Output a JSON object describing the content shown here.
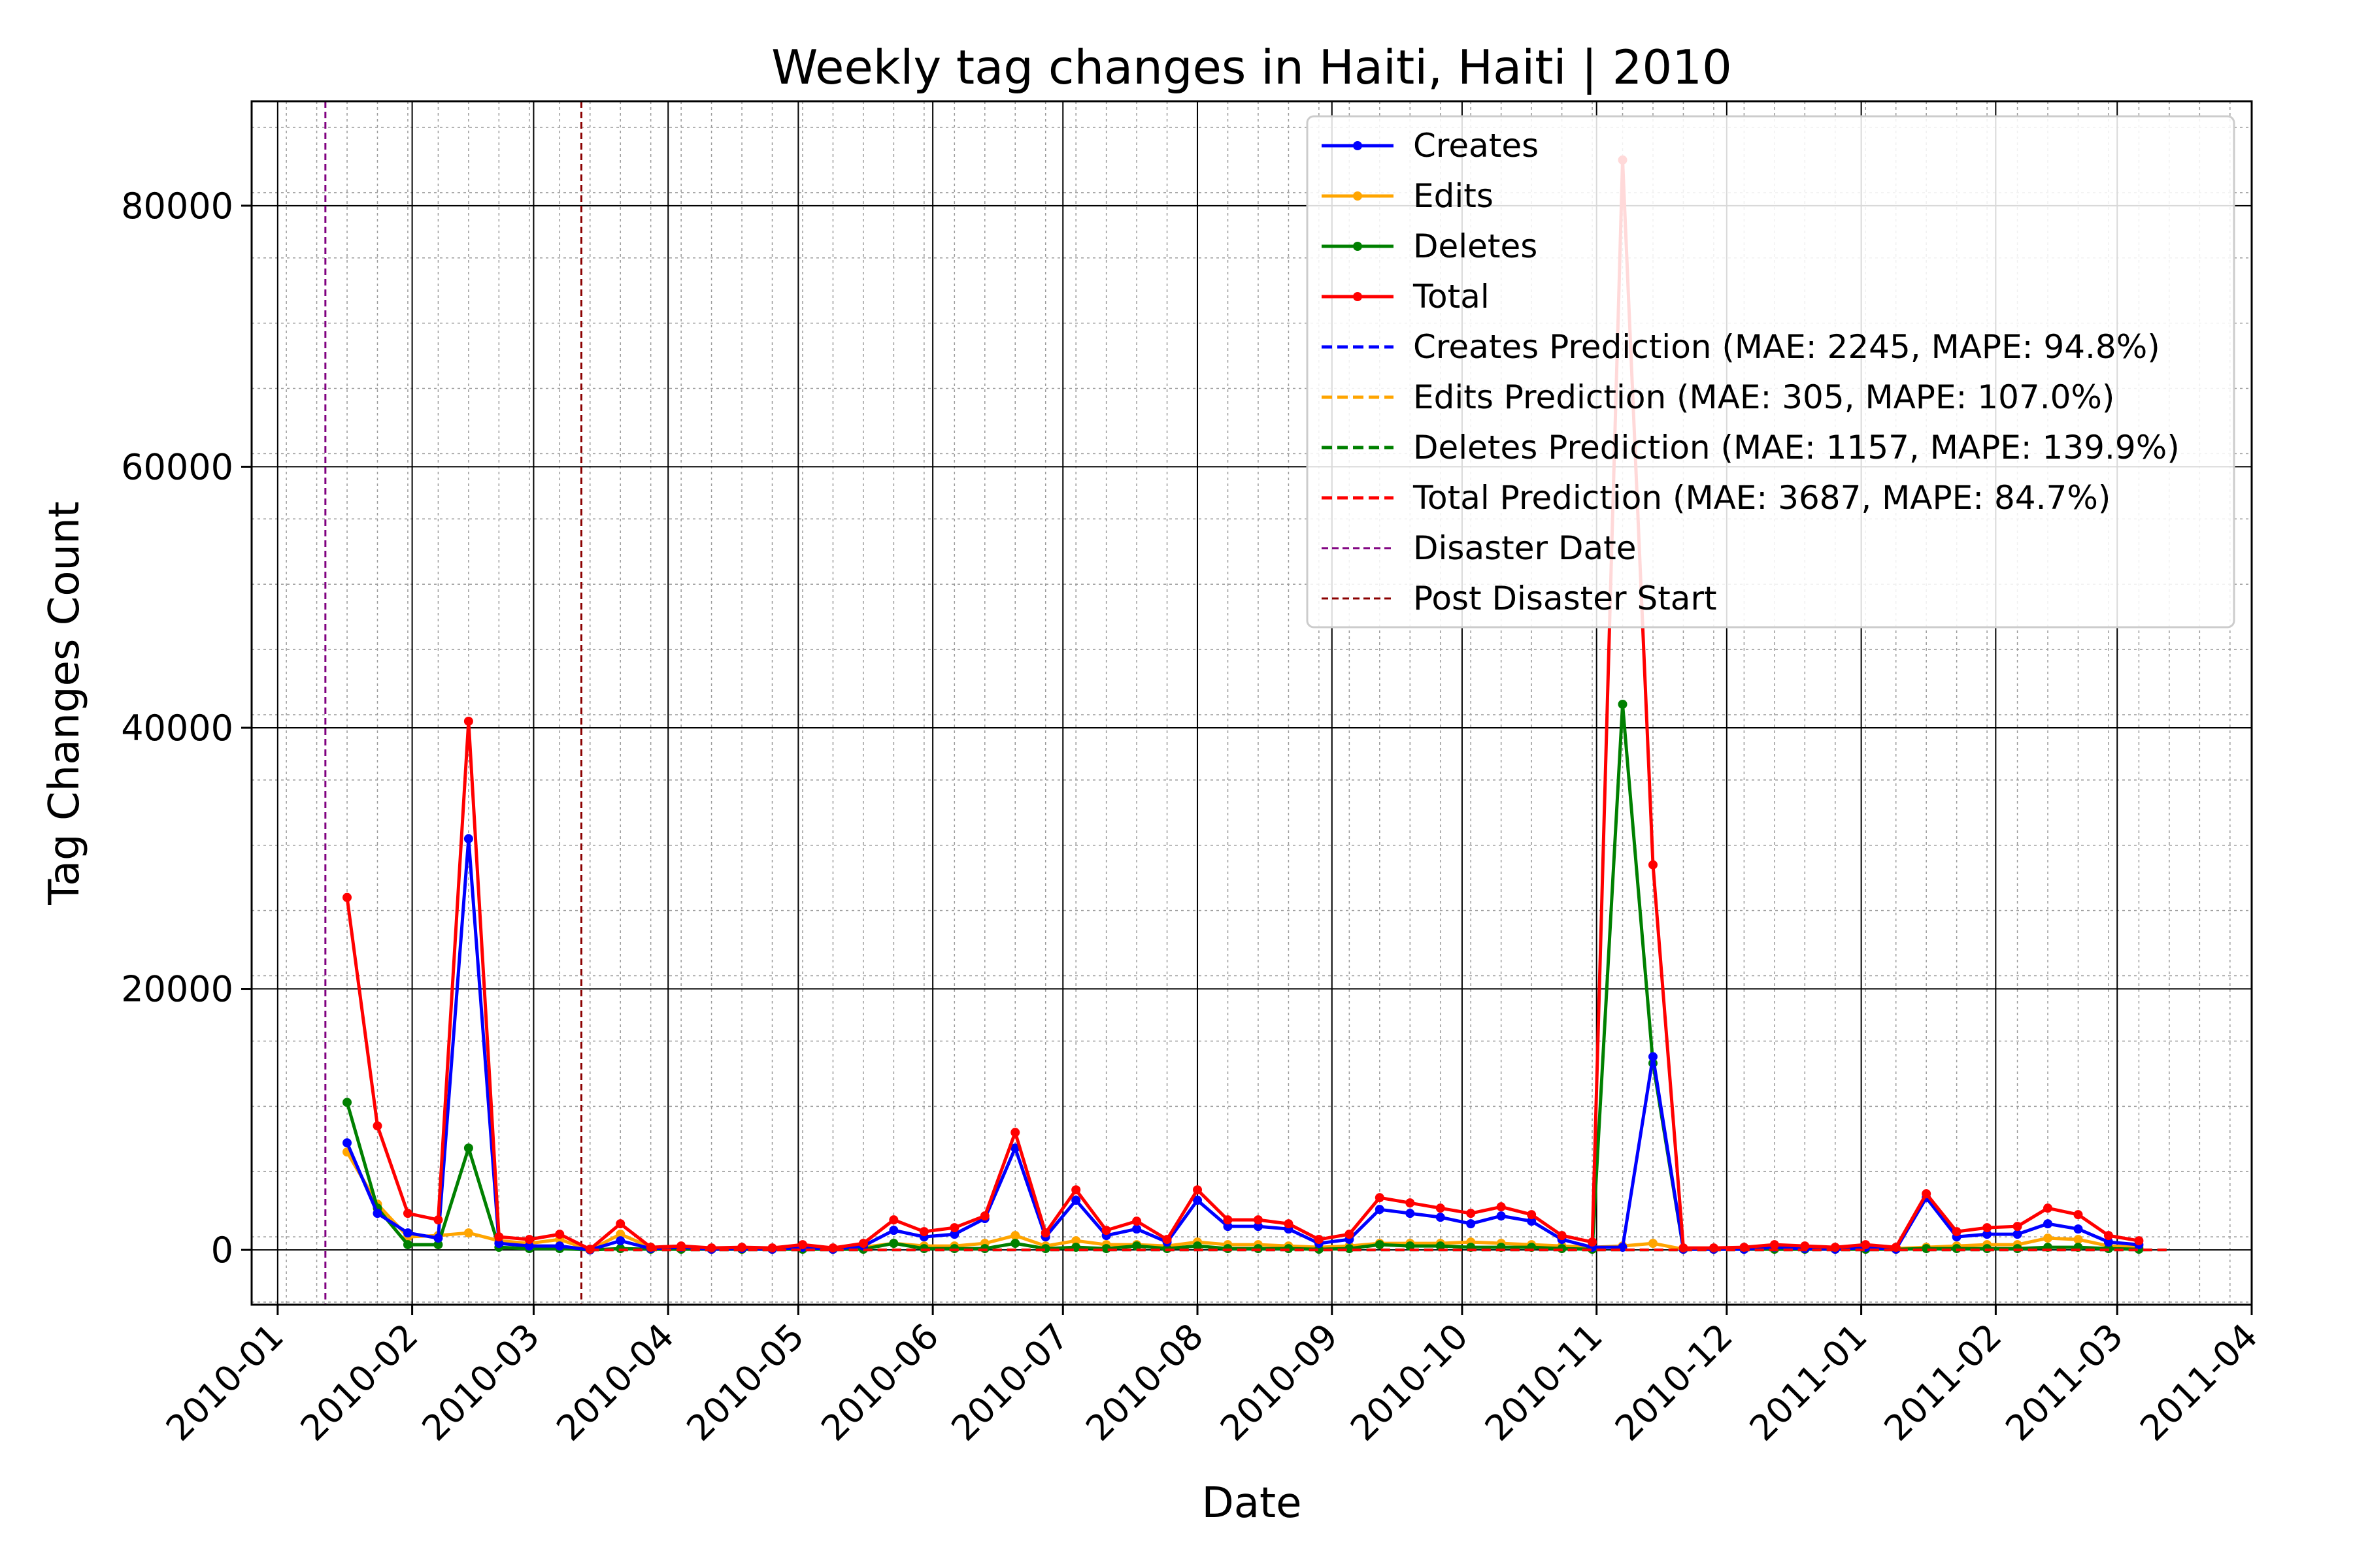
{
  "chart_data": {
    "type": "line",
    "title": "Weekly tag changes in Haiti, Haiti | 2010",
    "xlabel": "Date",
    "ylabel": "Tag Changes Count",
    "xlim": [
      "2009-12-26",
      "2011-04-01"
    ],
    "ylim": [
      -4200,
      88000
    ],
    "grid": "major and minor",
    "legend_position": "top-right",
    "x_ticks": [
      "2010-01",
      "2010-02",
      "2010-03",
      "2010-04",
      "2010-05",
      "2010-06",
      "2010-07",
      "2010-08",
      "2010-09",
      "2010-10",
      "2010-11",
      "2010-12",
      "2011-01",
      "2011-02",
      "2011-03",
      "2011-04"
    ],
    "y_ticks": [
      0,
      20000,
      40000,
      60000,
      80000
    ],
    "x": [
      "2010-01-17",
      "2010-01-24",
      "2010-01-31",
      "2010-02-07",
      "2010-02-14",
      "2010-02-21",
      "2010-02-28",
      "2010-03-07",
      "2010-03-14",
      "2010-03-21",
      "2010-03-28",
      "2010-04-04",
      "2010-04-11",
      "2010-04-18",
      "2010-04-25",
      "2010-05-02",
      "2010-05-09",
      "2010-05-16",
      "2010-05-23",
      "2010-05-30",
      "2010-06-06",
      "2010-06-13",
      "2010-06-20",
      "2010-06-27",
      "2010-07-04",
      "2010-07-11",
      "2010-07-18",
      "2010-07-25",
      "2010-08-01",
      "2010-08-08",
      "2010-08-15",
      "2010-08-22",
      "2010-08-29",
      "2010-09-05",
      "2010-09-12",
      "2010-09-19",
      "2010-09-26",
      "2010-10-03",
      "2010-10-10",
      "2010-10-17",
      "2010-10-24",
      "2010-10-31",
      "2010-11-07",
      "2010-11-14",
      "2010-11-21",
      "2010-11-28",
      "2010-12-05",
      "2010-12-12",
      "2010-12-19",
      "2010-12-26",
      "2011-01-02",
      "2011-01-09",
      "2011-01-16",
      "2011-01-23",
      "2011-01-30",
      "2011-02-06",
      "2011-02-13",
      "2011-02-20",
      "2011-02-27",
      "2011-03-06"
    ],
    "series": [
      {
        "name": "Creates",
        "color": "#0000ff",
        "style": "solid-marker",
        "values": [
          8200,
          2800,
          1300,
          900,
          31500,
          500,
          300,
          300,
          0,
          700,
          100,
          200,
          50,
          100,
          50,
          200,
          50,
          300,
          1500,
          1000,
          1200,
          2400,
          7800,
          1000,
          3800,
          1100,
          1600,
          600,
          3800,
          1800,
          1800,
          1600,
          500,
          800,
          3100,
          2800,
          2500,
          2000,
          2600,
          2200,
          800,
          200,
          200,
          14800,
          50,
          50,
          50,
          200,
          100,
          50,
          200,
          50,
          4000,
          1000,
          1200,
          1200,
          2000,
          1600,
          600,
          400
        ]
      },
      {
        "name": "Edits",
        "color": "#ffa500",
        "style": "solid-marker",
        "values": [
          7500,
          3500,
          1000,
          1100,
          1300,
          700,
          500,
          800,
          0,
          1200,
          200,
          100,
          50,
          50,
          50,
          100,
          50,
          200,
          500,
          300,
          300,
          500,
          1100,
          300,
          700,
          400,
          400,
          300,
          600,
          400,
          400,
          300,
          200,
          300,
          500,
          500,
          500,
          600,
          500,
          400,
          300,
          200,
          300,
          500,
          50,
          50,
          100,
          200,
          200,
          100,
          200,
          100,
          200,
          300,
          400,
          400,
          900,
          800,
          300,
          200
        ]
      },
      {
        "name": "Deletes",
        "color": "#008000",
        "style": "solid-marker",
        "values": [
          11300,
          3200,
          400,
          400,
          7800,
          200,
          100,
          100,
          0,
          100,
          50,
          50,
          50,
          50,
          50,
          50,
          50,
          50,
          500,
          100,
          100,
          100,
          500,
          100,
          200,
          100,
          300,
          100,
          300,
          100,
          100,
          100,
          50,
          100,
          400,
          300,
          300,
          200,
          200,
          200,
          100,
          50,
          41800,
          14300,
          50,
          50,
          50,
          50,
          50,
          50,
          50,
          50,
          100,
          100,
          100,
          100,
          200,
          200,
          100,
          50
        ]
      },
      {
        "name": "Total",
        "color": "#ff0000",
        "style": "solid-marker",
        "values": [
          27000,
          9500,
          2800,
          2300,
          40500,
          1000,
          800,
          1200,
          50,
          2000,
          200,
          300,
          150,
          200,
          150,
          400,
          150,
          500,
          2300,
          1400,
          1700,
          2600,
          9000,
          1300,
          4600,
          1500,
          2200,
          800,
          4600,
          2300,
          2300,
          2000,
          800,
          1200,
          4000,
          3600,
          3200,
          2800,
          3300,
          2700,
          1100,
          600,
          83500,
          29500,
          150,
          150,
          200,
          400,
          300,
          200,
          400,
          200,
          4300,
          1400,
          1700,
          1800,
          3200,
          2700,
          1100,
          700
        ]
      }
    ],
    "legend": [
      {
        "label": "Creates",
        "color": "#0000ff",
        "style": "solid-marker"
      },
      {
        "label": "Edits",
        "color": "#ffa500",
        "style": "solid-marker"
      },
      {
        "label": "Deletes",
        "color": "#008000",
        "style": "solid-marker"
      },
      {
        "label": "Total",
        "color": "#ff0000",
        "style": "solid-marker"
      },
      {
        "label": "Creates Prediction (MAE: 2245, MAPE: 94.8%)",
        "color": "#0000ff",
        "style": "dashed"
      },
      {
        "label": "Edits Prediction (MAE: 305, MAPE: 107.0%)",
        "color": "#ffa500",
        "style": "dashed"
      },
      {
        "label": "Deletes Prediction (MAE: 1157, MAPE: 139.9%)",
        "color": "#008000",
        "style": "dashed"
      },
      {
        "label": "Total Prediction (MAE: 3687, MAPE: 84.7%)",
        "color": "#ff0000",
        "style": "dashed"
      },
      {
        "label": "Disaster Date",
        "color": "#800080",
        "style": "thin-dashed"
      },
      {
        "label": "Post Disaster Start",
        "color": "#8b0000",
        "style": "thin-dashed"
      }
    ],
    "vlines": [
      {
        "label": "Disaster Date",
        "date": "2010-01-12",
        "color": "#800080"
      },
      {
        "label": "Post Disaster Start",
        "date": "2010-03-12",
        "color": "#8b0000"
      }
    ],
    "prediction": {
      "x_start": "2010-03-14",
      "x_end": "2011-03-13",
      "value": 0
    }
  }
}
